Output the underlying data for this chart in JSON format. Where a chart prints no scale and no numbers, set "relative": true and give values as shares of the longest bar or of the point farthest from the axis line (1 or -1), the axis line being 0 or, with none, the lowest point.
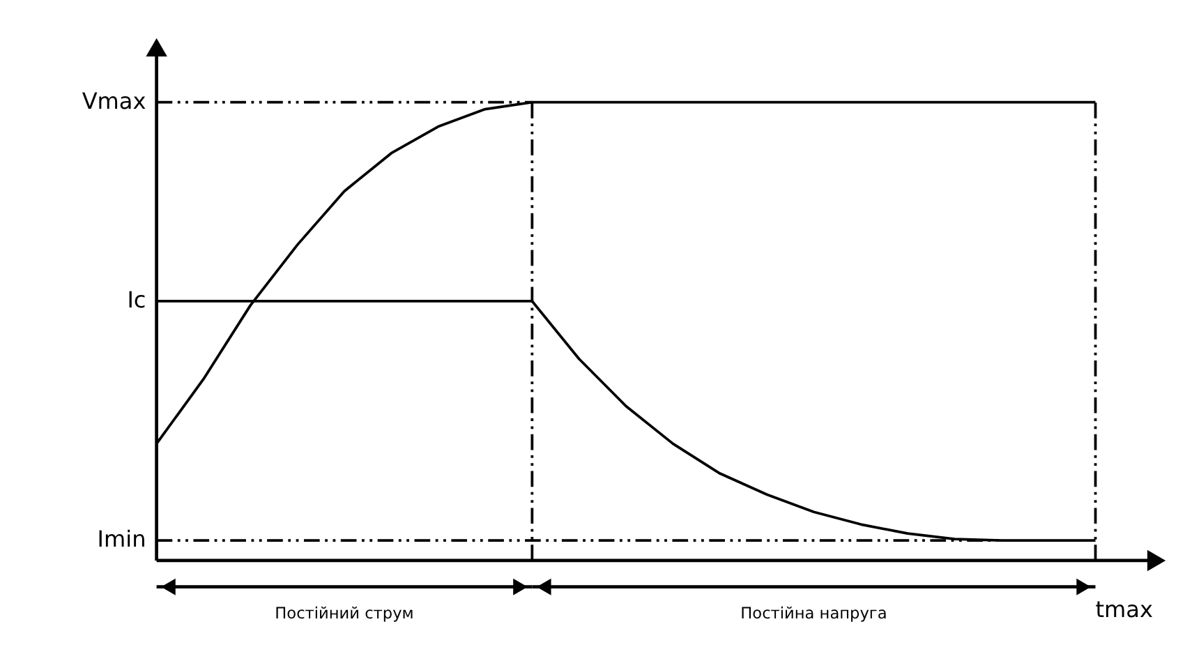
{
  "chart_data": {
    "type": "line",
    "relative": true,
    "categories": [
      null,
      null,
      null,
      null,
      null,
      null,
      null,
      null,
      null,
      null,
      null,
      null,
      null,
      null,
      null,
      null,
      null,
      null,
      null,
      null,
      null
    ],
    "series": [
      {
        "color": "#000000",
        "values": [
          0.255,
          0.396,
          0.557,
          0.689,
          0.806,
          0.889,
          0.947,
          0.985,
          1,
          1,
          1,
          1,
          1,
          1,
          1,
          1,
          1,
          1,
          1,
          1,
          1
        ]
      },
      {
        "name": "Ic",
        "color": "#000000",
        "values": [
          0.566,
          0.566,
          0.566,
          0.566,
          0.566,
          0.566,
          0.566,
          0.566,
          0.566,
          0.44,
          0.337,
          0.255,
          0.19,
          0.144,
          0.106,
          0.079,
          0.059,
          0.047,
          0.044,
          0.044,
          0.044
        ]
      }
    ],
    "ref_lines": [
      {
        "axis": "y",
        "value": 1,
        "label": "Vmax",
        "line_style": "dashed",
        "color": "#000000"
      },
      {
        "axis": "y",
        "value": 0.044,
        "label": "Imin",
        "line_style": "dashed",
        "color": "#000000"
      }
    ],
    "annotations": [
      "Постійний струм",
      "Постійна напруга",
      "tmax"
    ],
    "line_style": "solid",
    "marker": "none",
    "legend": false,
    "grid": false
  }
}
